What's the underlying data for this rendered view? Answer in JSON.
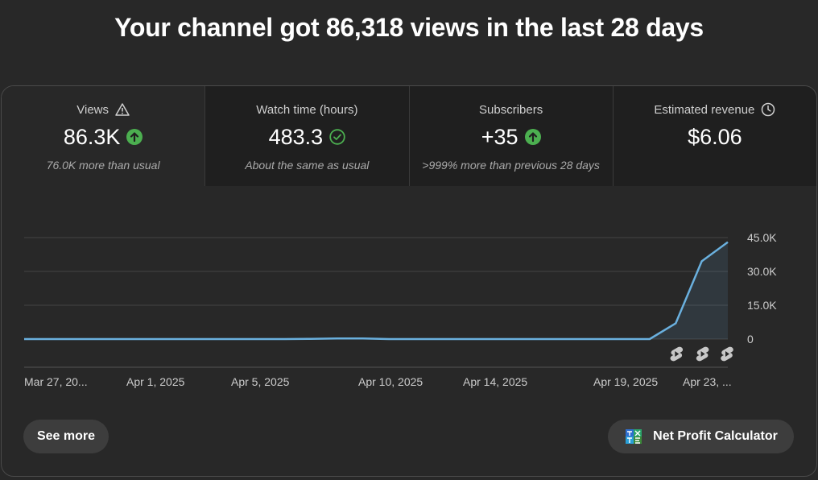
{
  "headline": "Your channel got 86,318 views in the last 28 days",
  "metrics": [
    {
      "label": "Views",
      "value": "86.3K",
      "note": "76.0K more than usual",
      "label_icon": "warning-triangle-icon",
      "value_icon": "arrow-up-circle-icon"
    },
    {
      "label": "Watch time (hours)",
      "value": "483.3",
      "note": "About the same as usual",
      "label_icon": "",
      "value_icon": "check-circle-icon"
    },
    {
      "label": "Subscribers",
      "value": "+35",
      "note": ">999% more than previous 28 days",
      "label_icon": "",
      "value_icon": "arrow-up-circle-icon"
    },
    {
      "label": "Estimated revenue",
      "value": "$6.06",
      "note": "",
      "label_icon": "clock-icon",
      "value_icon": ""
    }
  ],
  "chart_data": {
    "type": "area",
    "series": [
      {
        "values": [
          0,
          0,
          0,
          0,
          0,
          0,
          0,
          0,
          0,
          0,
          0,
          100,
          300,
          300,
          0,
          0,
          0,
          0,
          0,
          0,
          0,
          0,
          0,
          0,
          0,
          7000,
          34500,
          43000
        ]
      }
    ],
    "x_tick_labels": [
      "Mar 27, 20...",
      "Apr 1, 2025",
      "Apr 5, 2025",
      "Apr 10, 2025",
      "Apr 14, 2025",
      "Apr 19, 2025",
      "Apr 23, ..."
    ],
    "y_tick_labels": [
      "45.0K",
      "30.0K",
      "15.0K",
      "0"
    ],
    "ylim": [
      0,
      45000
    ],
    "grid": true,
    "line_color": "#6ab0de",
    "markers": {
      "icon": "shorts-icon",
      "count": 3
    }
  },
  "buttons": {
    "see_more": "See more",
    "calculator": "Net Profit Calculator"
  },
  "colors": {
    "up_arrow": "#4caf50",
    "background": "#282828",
    "tile": "#1f1f1f"
  }
}
